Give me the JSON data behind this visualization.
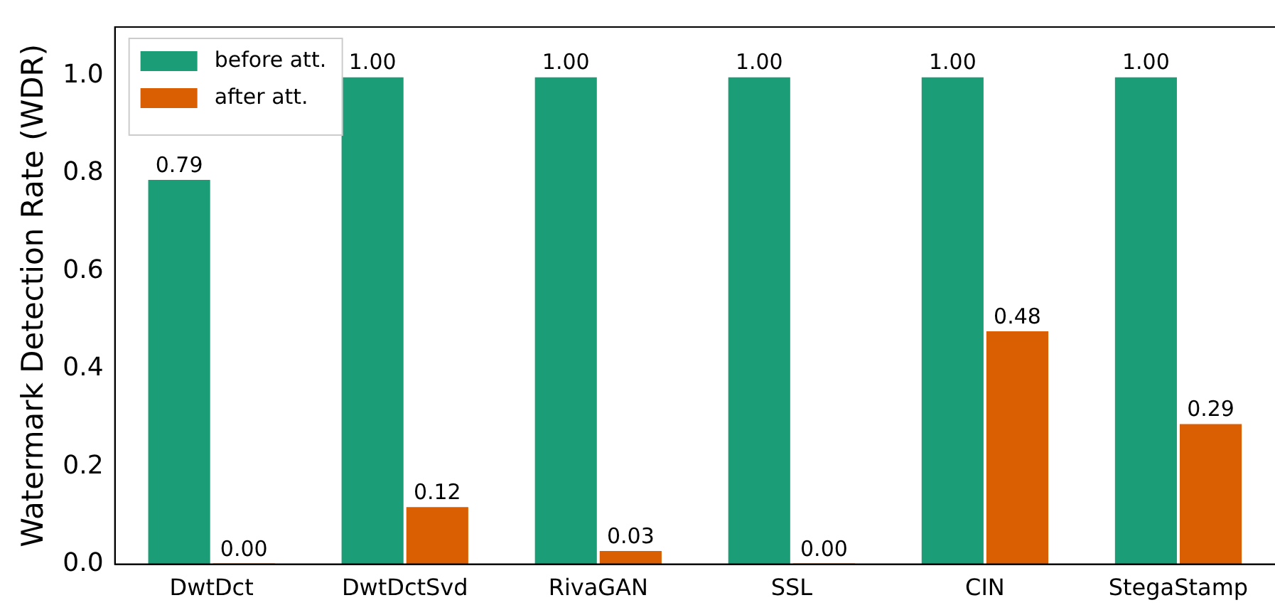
{
  "chart_data": {
    "type": "bar",
    "ylabel": "Watermark Detection Rate (WDR)",
    "categories": [
      "DwtDct",
      "DwtDctSvd",
      "RivaGAN",
      "SSL",
      "CIN",
      "StegaStamp"
    ],
    "series": [
      {
        "name": "before att.",
        "color": "#1b9e77",
        "values": [
          0.79,
          1.0,
          1.0,
          1.0,
          1.0,
          1.0
        ],
        "value_labels": [
          "0.79",
          "1.00",
          "1.00",
          "1.00",
          "1.00",
          "1.00"
        ]
      },
      {
        "name": "after att.",
        "color": "#d95f02",
        "values": [
          0.0,
          0.12,
          0.03,
          0.0,
          0.48,
          0.29
        ],
        "value_labels": [
          "0.00",
          "0.12",
          "0.03",
          "0.00",
          "0.48",
          "0.29"
        ]
      }
    ],
    "ylim": [
      0,
      1.1
    ],
    "yticks": [
      {
        "value": 0,
        "label": "0.0"
      },
      {
        "value": 0.2,
        "label": "0.2"
      },
      {
        "value": 0.4,
        "label": "0.4"
      },
      {
        "value": 0.6,
        "label": "0.6"
      },
      {
        "value": 0.8,
        "label": "0.8"
      },
      {
        "value": 1.0,
        "label": "1.0"
      }
    ],
    "grid": false,
    "legend": "top left"
  }
}
